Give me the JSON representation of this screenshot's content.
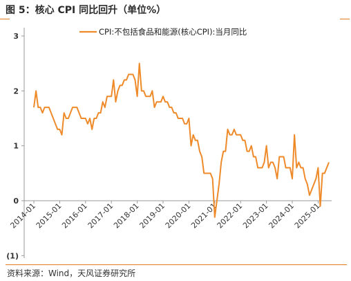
{
  "title": "图 5：核心 CPI 同比回升（单位%）",
  "source": "资料来源：Wind，天风证券研究所",
  "colors": {
    "line": "#ee8a2a",
    "accent": "#e07a1c",
    "neg_label": "#c00000"
  },
  "chart_data": {
    "type": "line",
    "legend_position": "top-center",
    "grid": false,
    "ylim": [
      -1,
      3
    ],
    "y_ticks": [
      "3",
      "2",
      "1",
      "0",
      "(1)"
    ],
    "x_ticks": [
      "2014-01",
      "2015-01",
      "2016-01",
      "2017-01",
      "2018-01",
      "2019-01",
      "2020-01",
      "2021-01",
      "2022-01",
      "2023-01",
      "2024-01",
      "2025-01"
    ],
    "series": [
      {
        "name": "CPI:不包括食品和能源(核心CPI):当月同比",
        "start": "2014-01",
        "frequency": "monthly",
        "values": [
          1.7,
          2.0,
          1.7,
          1.7,
          1.6,
          1.7,
          1.7,
          1.7,
          1.6,
          1.5,
          1.4,
          1.3,
          1.3,
          1.2,
          1.6,
          1.5,
          1.5,
          1.6,
          1.7,
          1.7,
          1.7,
          1.6,
          1.5,
          1.5,
          1.5,
          1.4,
          1.5,
          1.3,
          1.5,
          1.5,
          1.6,
          1.6,
          1.8,
          1.7,
          1.9,
          1.9,
          1.9,
          2.2,
          1.8,
          2.0,
          2.1,
          2.1,
          2.2,
          2.2,
          2.3,
          2.3,
          2.3,
          2.2,
          1.9,
          2.5,
          2.0,
          2.0,
          1.9,
          1.9,
          1.9,
          2.0,
          1.7,
          1.8,
          1.8,
          1.8,
          1.9,
          1.8,
          1.8,
          1.7,
          1.7,
          1.6,
          1.6,
          1.5,
          1.5,
          1.5,
          1.4,
          1.4,
          1.5,
          1.0,
          1.2,
          1.1,
          1.1,
          0.9,
          0.8,
          0.5,
          0.5,
          0.5,
          0.5,
          0.4,
          -0.3,
          0.0,
          0.3,
          0.7,
          0.9,
          0.9,
          1.3,
          1.2,
          1.2,
          1.3,
          1.2,
          1.2,
          1.2,
          1.1,
          1.1,
          0.9,
          0.9,
          1.0,
          0.8,
          0.8,
          0.6,
          0.6,
          0.6,
          0.7,
          1.0,
          0.6,
          0.7,
          0.7,
          0.6,
          0.4,
          0.8,
          0.8,
          0.8,
          0.6,
          0.6,
          0.6,
          0.4,
          1.2,
          0.6,
          0.7,
          0.6,
          0.6,
          0.4,
          0.3,
          0.1,
          0.2,
          0.3,
          0.4,
          0.6,
          -0.1,
          0.5,
          0.5,
          0.6,
          0.7
        ]
      }
    ]
  }
}
